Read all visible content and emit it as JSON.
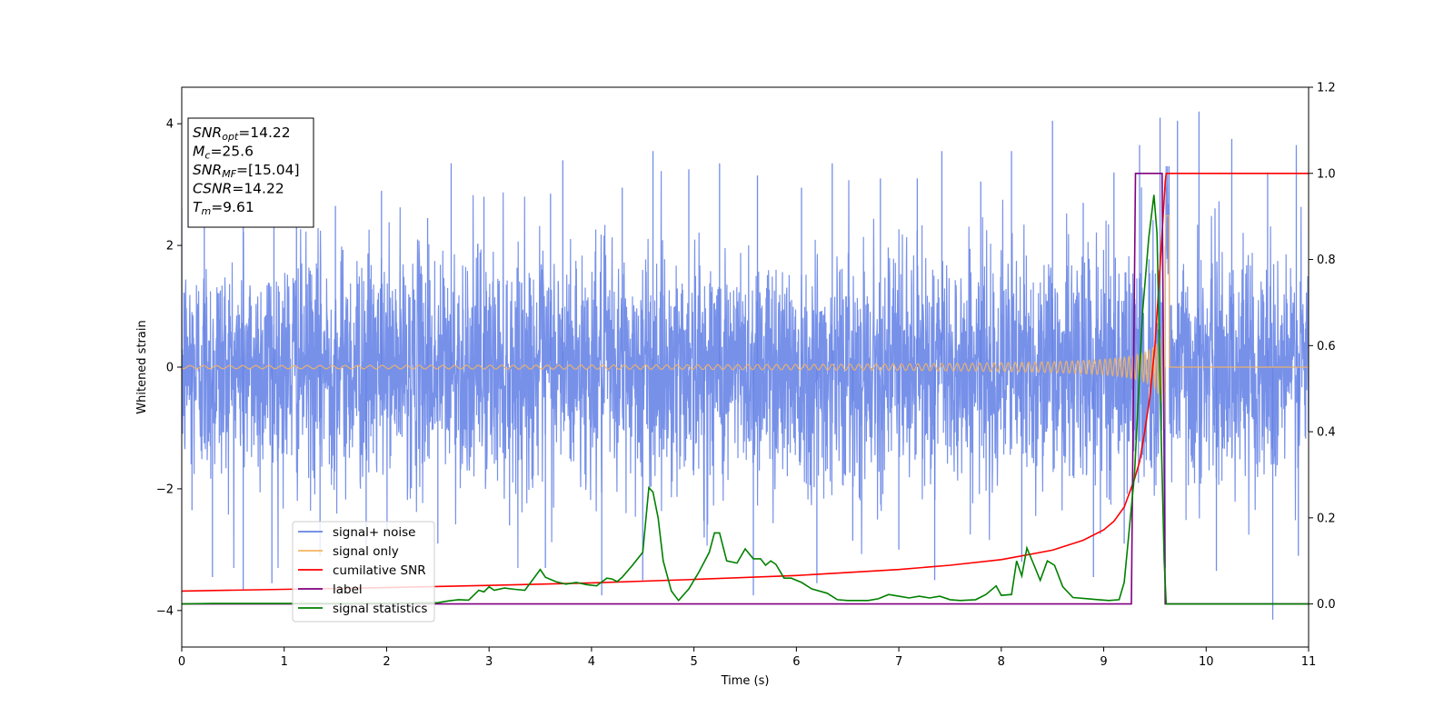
{
  "chart_data": {
    "type": "line",
    "xlabel": "Time (s)",
    "ylabel": "Whitened strain",
    "xlim": [
      0,
      11
    ],
    "ylim_left": [
      -4.6,
      4.6
    ],
    "ylim_right": [
      -0.1,
      1.2
    ],
    "x_ticks": [
      "0",
      "1",
      "2",
      "3",
      "4",
      "5",
      "6",
      "7",
      "8",
      "9",
      "10",
      "11"
    ],
    "y_ticks_left": [
      "−4",
      "−2",
      "0",
      "2",
      "4"
    ],
    "y_ticks_right": [
      "0.0",
      "0.2",
      "0.4",
      "0.6",
      "0.8",
      "1.0",
      "1.2"
    ],
    "grid": false,
    "legend_position": "lower-left",
    "info_box": {
      "position": "top-left",
      "lines": [
        {
          "sym": "SNR",
          "sub": "opt",
          "rest": "=14.22"
        },
        {
          "sym": "M",
          "sub": "c",
          "rest": "=25.6"
        },
        {
          "sym": "SNR",
          "sub": "MF",
          "rest": "=[15.04]"
        },
        {
          "sym": "CSNR",
          "sub": "",
          "rest": "=14.22"
        },
        {
          "sym": "T",
          "sub": "m",
          "rest": "=9.61"
        }
      ]
    },
    "series": [
      {
        "name": "signal+ noise",
        "axis": "left",
        "color": "#6482e6",
        "kind": "noise",
        "std": 0.95,
        "spikes": [
          [
            0.22,
            2.5
          ],
          [
            0.6,
            2.35
          ],
          [
            0.9,
            2.7
          ],
          [
            1.12,
            3.05
          ],
          [
            1.5,
            2.65
          ],
          [
            1.95,
            2.9
          ],
          [
            2.4,
            2.45
          ],
          [
            2.63,
            3.35
          ],
          [
            2.95,
            2.8
          ],
          [
            3.6,
            2.85
          ],
          [
            3.72,
            3.4
          ],
          [
            4.3,
            2.95
          ],
          [
            4.6,
            3.55
          ],
          [
            4.95,
            3.25
          ],
          [
            5.25,
            3.35
          ],
          [
            5.62,
            3.15
          ],
          [
            6.05,
            2.95
          ],
          [
            6.35,
            3.35
          ],
          [
            6.82,
            3.1
          ],
          [
            7.18,
            3.1
          ],
          [
            7.42,
            3.55
          ],
          [
            7.8,
            3.05
          ],
          [
            8.1,
            3.55
          ],
          [
            8.5,
            4.05
          ],
          [
            8.8,
            2.7
          ],
          [
            9.1,
            3.2
          ],
          [
            9.35,
            3.65
          ],
          [
            9.55,
            4.1
          ],
          [
            9.72,
            4.05
          ],
          [
            9.93,
            4.2
          ],
          [
            10.25,
            3.75
          ],
          [
            10.6,
            3.2
          ],
          [
            10.88,
            3.65
          ],
          [
            0.1,
            -2.35
          ],
          [
            0.3,
            -3.45
          ],
          [
            0.6,
            -3.65
          ],
          [
            0.88,
            -3.55
          ],
          [
            1.35,
            -3.1
          ],
          [
            1.8,
            -2.95
          ],
          [
            2.5,
            -2.9
          ],
          [
            3.2,
            -2.6
          ],
          [
            3.55,
            -3.3
          ],
          [
            4.1,
            -3.75
          ],
          [
            4.5,
            -3.5
          ],
          [
            5.1,
            -2.8
          ],
          [
            5.58,
            -3.75
          ],
          [
            6.2,
            -3.55
          ],
          [
            6.55,
            -2.85
          ],
          [
            7.0,
            -3.0
          ],
          [
            7.35,
            -3.5
          ],
          [
            8.2,
            -3.2
          ],
          [
            8.9,
            -3.45
          ],
          [
            9.2,
            -2.9
          ],
          [
            9.6,
            -3.3
          ],
          [
            10.1,
            -3.35
          ],
          [
            10.65,
            -4.15
          ],
          [
            10.9,
            -3.1
          ]
        ]
      },
      {
        "name": "signal only",
        "axis": "left",
        "color": "#f5b461",
        "kind": "chirp",
        "merger_time": 9.61,
        "peak_amplitude": 3.3
      },
      {
        "name": "cumilative SNR",
        "axis": "right",
        "color": "#ff0000",
        "points": [
          [
            0,
            0.03
          ],
          [
            1,
            0.034
          ],
          [
            2,
            0.038
          ],
          [
            3,
            0.043
          ],
          [
            4,
            0.049
          ],
          [
            5,
            0.057
          ],
          [
            6,
            0.066
          ],
          [
            7,
            0.08
          ],
          [
            7.5,
            0.09
          ],
          [
            8,
            0.103
          ],
          [
            8.5,
            0.125
          ],
          [
            8.8,
            0.148
          ],
          [
            9.0,
            0.172
          ],
          [
            9.1,
            0.192
          ],
          [
            9.2,
            0.225
          ],
          [
            9.3,
            0.29
          ],
          [
            9.35,
            0.33
          ],
          [
            9.4,
            0.4
          ],
          [
            9.45,
            0.48
          ],
          [
            9.5,
            0.6
          ],
          [
            9.55,
            0.78
          ],
          [
            9.58,
            0.9
          ],
          [
            9.6,
            0.98
          ],
          [
            9.61,
            1.0
          ],
          [
            11,
            1.0
          ]
        ]
      },
      {
        "name": "label",
        "axis": "right",
        "color": "#800080",
        "points": [
          [
            0,
            0.0
          ],
          [
            9.27,
            0.0
          ],
          [
            9.31,
            1.0
          ],
          [
            9.57,
            1.0
          ],
          [
            9.6,
            0.0
          ],
          [
            11,
            0.0
          ]
        ]
      },
      {
        "name": "signal statistics",
        "axis": "right",
        "color": "#008000",
        "points": [
          [
            0,
            0.0
          ],
          [
            0.3,
            0.001
          ],
          [
            1,
            0.001
          ],
          [
            1.7,
            0.001
          ],
          [
            2.2,
            0.002
          ],
          [
            2.5,
            0.003
          ],
          [
            2.6,
            0.007
          ],
          [
            2.7,
            0.01
          ],
          [
            2.8,
            0.009
          ],
          [
            2.9,
            0.032
          ],
          [
            2.95,
            0.028
          ],
          [
            3.0,
            0.04
          ],
          [
            3.05,
            0.032
          ],
          [
            3.15,
            0.037
          ],
          [
            3.25,
            0.034
          ],
          [
            3.35,
            0.032
          ],
          [
            3.4,
            0.048
          ],
          [
            3.5,
            0.08
          ],
          [
            3.55,
            0.062
          ],
          [
            3.65,
            0.052
          ],
          [
            3.75,
            0.046
          ],
          [
            3.85,
            0.05
          ],
          [
            3.95,
            0.045
          ],
          [
            4.05,
            0.042
          ],
          [
            4.15,
            0.06
          ],
          [
            4.2,
            0.058
          ],
          [
            4.25,
            0.052
          ],
          [
            4.3,
            0.062
          ],
          [
            4.4,
            0.09
          ],
          [
            4.5,
            0.12
          ],
          [
            4.56,
            0.27
          ],
          [
            4.6,
            0.26
          ],
          [
            4.65,
            0.2
          ],
          [
            4.7,
            0.1
          ],
          [
            4.78,
            0.03
          ],
          [
            4.85,
            0.008
          ],
          [
            4.95,
            0.035
          ],
          [
            5.05,
            0.075
          ],
          [
            5.15,
            0.12
          ],
          [
            5.2,
            0.165
          ],
          [
            5.25,
            0.165
          ],
          [
            5.32,
            0.1
          ],
          [
            5.42,
            0.095
          ],
          [
            5.5,
            0.128
          ],
          [
            5.58,
            0.105
          ],
          [
            5.65,
            0.105
          ],
          [
            5.7,
            0.09
          ],
          [
            5.75,
            0.1
          ],
          [
            5.8,
            0.092
          ],
          [
            5.88,
            0.06
          ],
          [
            5.95,
            0.06
          ],
          [
            6.05,
            0.05
          ],
          [
            6.15,
            0.035
          ],
          [
            6.3,
            0.025
          ],
          [
            6.4,
            0.01
          ],
          [
            6.5,
            0.008
          ],
          [
            6.7,
            0.008
          ],
          [
            6.8,
            0.012
          ],
          [
            6.9,
            0.022
          ],
          [
            7.0,
            0.018
          ],
          [
            7.1,
            0.014
          ],
          [
            7.2,
            0.018
          ],
          [
            7.3,
            0.014
          ],
          [
            7.4,
            0.018
          ],
          [
            7.5,
            0.01
          ],
          [
            7.6,
            0.008
          ],
          [
            7.75,
            0.01
          ],
          [
            7.85,
            0.022
          ],
          [
            7.95,
            0.042
          ],
          [
            8.0,
            0.02
          ],
          [
            8.1,
            0.022
          ],
          [
            8.15,
            0.1
          ],
          [
            8.2,
            0.065
          ],
          [
            8.25,
            0.13
          ],
          [
            8.32,
            0.09
          ],
          [
            8.38,
            0.055
          ],
          [
            8.45,
            0.1
          ],
          [
            8.52,
            0.09
          ],
          [
            8.6,
            0.04
          ],
          [
            8.7,
            0.015
          ],
          [
            8.85,
            0.012
          ],
          [
            8.95,
            0.01
          ],
          [
            9.05,
            0.008
          ],
          [
            9.15,
            0.01
          ],
          [
            9.2,
            0.05
          ],
          [
            9.3,
            0.3
          ],
          [
            9.38,
            0.68
          ],
          [
            9.44,
            0.85
          ],
          [
            9.49,
            0.95
          ],
          [
            9.52,
            0.86
          ],
          [
            9.56,
            0.4
          ],
          [
            9.59,
            0.1
          ],
          [
            9.61,
            0.0
          ],
          [
            11,
            0.0
          ]
        ]
      }
    ]
  }
}
